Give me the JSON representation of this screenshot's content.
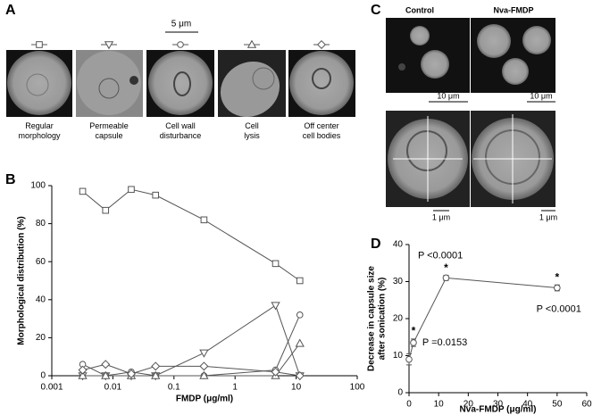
{
  "figure": {
    "panel_labels": [
      "A",
      "B",
      "C",
      "D"
    ],
    "scale_bar_a": "5 μm",
    "conditions": [
      "Control",
      "Nva-FMDP"
    ],
    "scale_bars_c": [
      "10 μm",
      "10 μm",
      "1 μm",
      "1 μm"
    ]
  },
  "chart_data": [
    {
      "type": "line",
      "xlabel": "FMDP (μg/ml)",
      "ylabel": "Morphological distribution (%)",
      "xscale": "log",
      "xlim": [
        0.001,
        100
      ],
      "xticks": [
        0.001,
        0.01,
        0.1,
        1,
        10,
        100
      ],
      "ylim": [
        0,
        100
      ],
      "yticks": [
        0,
        20,
        40,
        60,
        80,
        100
      ],
      "x": [
        0.0032,
        0.0076,
        0.02,
        0.05,
        0.31,
        4.6,
        11.5
      ],
      "series": [
        {
          "name": "Regular morphology",
          "marker": "square",
          "color": "#555555",
          "values": [
            97,
            87,
            98,
            95,
            82,
            59,
            50
          ]
        },
        {
          "name": "Permeable capsule",
          "marker": "triangle-down",
          "color": "#555555",
          "values": [
            0,
            0,
            0,
            0,
            12,
            37,
            0
          ]
        },
        {
          "name": "Cell wall disturbance",
          "marker": "circle",
          "color": "#555555",
          "values": [
            6,
            0,
            2,
            0,
            0,
            3,
            32
          ]
        },
        {
          "name": "Cell lysis",
          "marker": "triangle-up",
          "color": "#555555",
          "values": [
            0,
            0,
            0,
            0,
            0,
            0,
            17
          ]
        },
        {
          "name": "Off center cell bodies",
          "marker": "diamond",
          "color": "#555555",
          "values": [
            3,
            6,
            1,
            5,
            5,
            2,
            0
          ]
        }
      ]
    },
    {
      "type": "line",
      "xlabel": "Nva-FMDP (μg/ml)",
      "ylabel": [
        "Decrease in capsule size",
        "after sonication (%)"
      ],
      "xlim": [
        0,
        60
      ],
      "xticks": [
        0,
        10,
        20,
        30,
        40,
        50,
        60
      ],
      "ylim": [
        0,
        40
      ],
      "yticks": [
        0,
        10,
        20,
        30,
        40
      ],
      "x": [
        0,
        1.5,
        12.5,
        50
      ],
      "series": [
        {
          "marker": "circle",
          "color": "#555555",
          "values": [
            9,
            13.5,
            31,
            28.3
          ],
          "errors": [
            1.5,
            1,
            0.7,
            0.8
          ]
        }
      ],
      "annotations": [
        {
          "text": "*",
          "x": 1.5,
          "y": 16.5
        },
        {
          "text": "*",
          "x": 12.5,
          "y": 33.5
        },
        {
          "text": "*",
          "x": 50,
          "y": 31
        },
        {
          "text": "P =0.0153",
          "x": 4.5,
          "y": 13.5
        },
        {
          "text": "P <0.0001",
          "x": 3,
          "y": 37
        },
        {
          "text": "P <0.0001",
          "x": 43,
          "y": 22.5
        }
      ]
    }
  ]
}
